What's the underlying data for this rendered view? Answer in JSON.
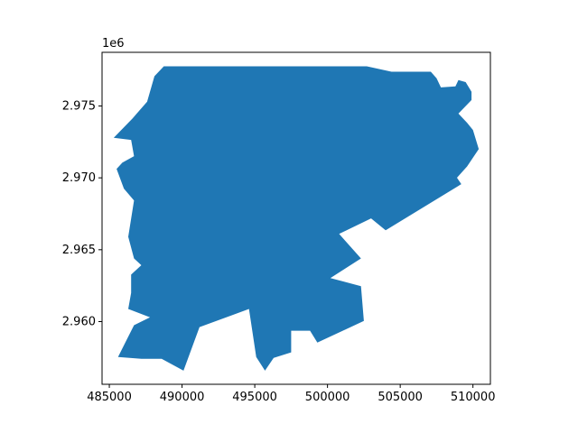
{
  "chart_data": {
    "type": "map",
    "title": "",
    "xlabel": "",
    "ylabel": "",
    "xlim": [
      484500,
      511200
    ],
    "ylim": [
      2955640,
      2978730
    ],
    "y_offset_label": "1e6",
    "x_ticks": [
      {
        "value": 485000,
        "label": "485000"
      },
      {
        "value": 490000,
        "label": "490000"
      },
      {
        "value": 495000,
        "label": "495000"
      },
      {
        "value": 500000,
        "label": "500000"
      },
      {
        "value": 505000,
        "label": "505000"
      },
      {
        "value": 510000,
        "label": "510000"
      }
    ],
    "y_ticks": [
      {
        "value": 2960000,
        "label": "2.960"
      },
      {
        "value": 2965000,
        "label": "2.965"
      },
      {
        "value": 2970000,
        "label": "2.970"
      },
      {
        "value": 2975000,
        "label": "2.975"
      }
    ],
    "fill_color": "#1f77b4",
    "region_outline": [
      [
        488750,
        2977760
      ],
      [
        502700,
        2977760
      ],
      [
        504400,
        2977380
      ],
      [
        507100,
        2977380
      ],
      [
        507500,
        2976920
      ],
      [
        507800,
        2976290
      ],
      [
        508800,
        2976360
      ],
      [
        509000,
        2976800
      ],
      [
        509500,
        2976660
      ],
      [
        509900,
        2975990
      ],
      [
        509900,
        2975410
      ],
      [
        509000,
        2974470
      ],
      [
        509600,
        2973830
      ],
      [
        510000,
        2973330
      ],
      [
        510400,
        2972000
      ],
      [
        509600,
        2970790
      ],
      [
        508900,
        2970010
      ],
      [
        509200,
        2969560
      ],
      [
        504000,
        2966350
      ],
      [
        503000,
        2967180
      ],
      [
        500800,
        2966100
      ],
      [
        502300,
        2964390
      ],
      [
        500200,
        2963030
      ],
      [
        502300,
        2962460
      ],
      [
        502500,
        2960050
      ],
      [
        499300,
        2958540
      ],
      [
        498800,
        2959370
      ],
      [
        497500,
        2959370
      ],
      [
        497500,
        2957860
      ],
      [
        496300,
        2957480
      ],
      [
        495700,
        2956590
      ],
      [
        495100,
        2957540
      ],
      [
        494600,
        2960880
      ],
      [
        491200,
        2959620
      ],
      [
        490100,
        2956590
      ],
      [
        488600,
        2957410
      ],
      [
        487200,
        2957410
      ],
      [
        485600,
        2957540
      ],
      [
        486700,
        2959750
      ],
      [
        487800,
        2960300
      ],
      [
        486300,
        2960880
      ],
      [
        486500,
        2962000
      ],
      [
        486500,
        2963270
      ],
      [
        487200,
        2963920
      ],
      [
        486700,
        2964390
      ],
      [
        486300,
        2965900
      ],
      [
        486700,
        2968430
      ],
      [
        486000,
        2969250
      ],
      [
        485500,
        2970620
      ],
      [
        485900,
        2971060
      ],
      [
        486700,
        2971510
      ],
      [
        486500,
        2972640
      ],
      [
        485300,
        2972780
      ],
      [
        486600,
        2974140
      ],
      [
        487600,
        2975300
      ],
      [
        488100,
        2977070
      ]
    ]
  }
}
